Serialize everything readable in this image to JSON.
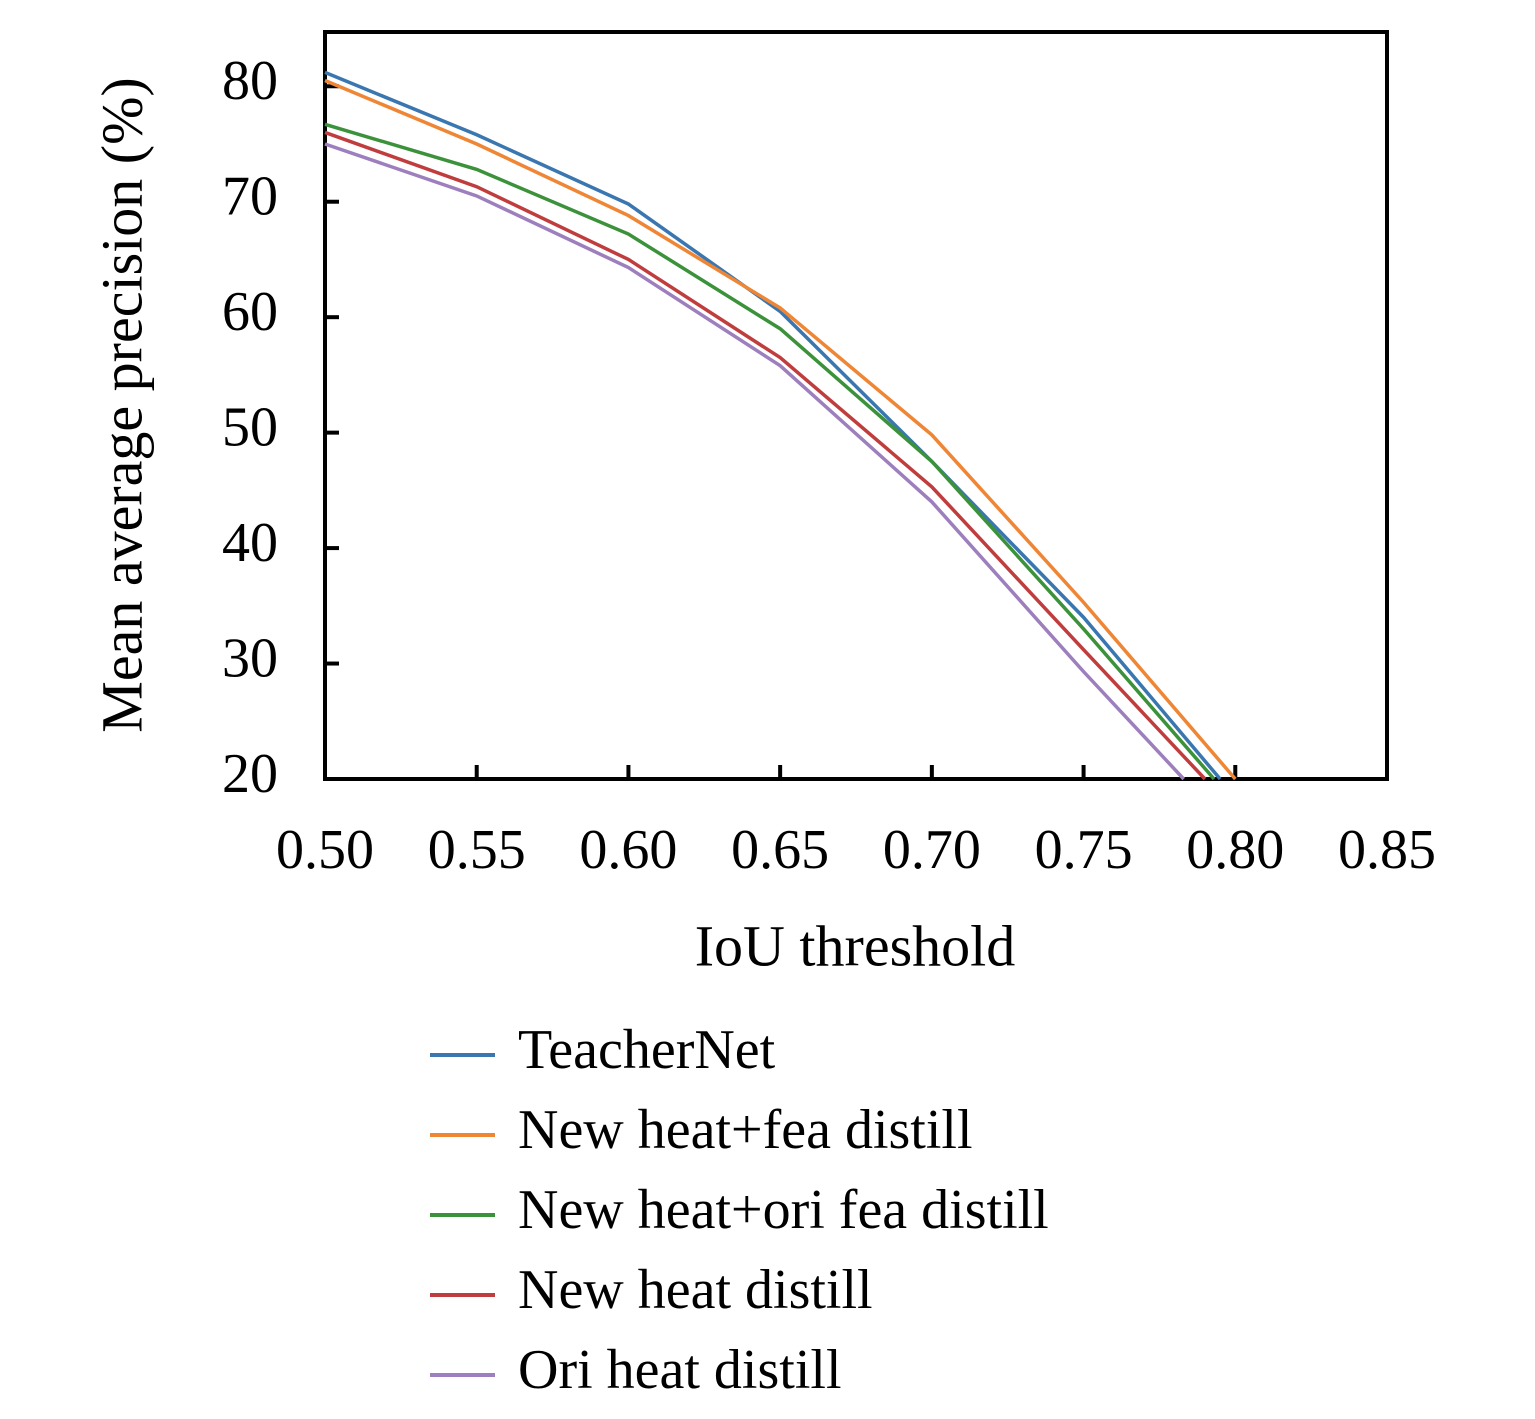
{
  "chart_data": {
    "type": "line",
    "x_label": "IoU threshold",
    "y_label": "Mean average precision (%)",
    "xlim": [
      0.5,
      0.85
    ],
    "xticks": [
      {
        "value": 0.5,
        "label": "0.50"
      },
      0.55,
      {
        "value": 0.6,
        "label": "0.60"
      },
      0.65,
      {
        "value": 0.7,
        "label": "0.70"
      },
      0.75,
      {
        "value": 0.8,
        "label": "0.80"
      },
      0.85
    ],
    "ylim": [
      20,
      84.7
    ],
    "yticks": [
      20,
      30,
      40,
      50,
      60,
      70,
      80
    ],
    "series": [
      {
        "name": "TeacherNet",
        "color": "#3a76af",
        "x": [
          0.5,
          0.55,
          0.6,
          0.65,
          0.7,
          0.75,
          0.795
        ],
        "values": [
          81.2,
          75.8,
          69.8,
          60.5,
          47.5,
          34,
          20
        ]
      },
      {
        "name": "New heat+fea distill",
        "color": "#ef8636",
        "x": [
          0.5,
          0.55,
          0.6,
          0.65,
          0.7,
          0.75,
          0.8
        ],
        "values": [
          80.5,
          75,
          68.8,
          60.8,
          49.8,
          35.3,
          20
        ]
      },
      {
        "name": "New heat+ori fea distill",
        "color": "#3b923a",
        "x": [
          0.5,
          0.55,
          0.6,
          0.65,
          0.7,
          0.75,
          0.793
        ],
        "values": [
          76.7,
          72.8,
          67.2,
          59,
          47.5,
          33,
          20
        ]
      },
      {
        "name": "New heat distill",
        "color": "#c03d3e",
        "x": [
          0.5,
          0.55,
          0.6,
          0.65,
          0.7,
          0.75,
          0.79
        ],
        "values": [
          76,
          71.3,
          65,
          56.5,
          45.3,
          31.2,
          20
        ]
      },
      {
        "name": "Ori heat distill",
        "color": "#9d7fbd",
        "x": [
          0.5,
          0.55,
          0.6,
          0.65,
          0.7,
          0.75,
          0.783
        ],
        "values": [
          75,
          70.5,
          64.3,
          55.8,
          44,
          29.3,
          20
        ]
      }
    ]
  }
}
